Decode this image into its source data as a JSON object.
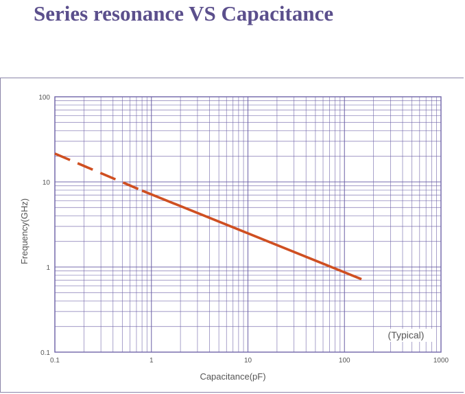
{
  "page": {
    "title": "Series resonance VS Capacitance"
  },
  "colors": {
    "title": "#5b4f8c",
    "grid": "#6f64a8",
    "curve": "#cf4f21",
    "axis_text": "#555555"
  },
  "chart_data": {
    "type": "line",
    "title": "",
    "xlabel": "Capacitance(pF)",
    "ylabel": "Frequency(GHz)",
    "xscale": "log",
    "yscale": "log",
    "xlim": [
      0.1,
      1000
    ],
    "ylim": [
      0.1,
      100
    ],
    "x_ticks": [
      {
        "value": 0.1,
        "label": "0.1"
      },
      {
        "value": 1,
        "label": "1"
      },
      {
        "value": 10,
        "label": "10"
      },
      {
        "value": 100,
        "label": "100"
      },
      {
        "value": 1000,
        "label": "1000"
      }
    ],
    "y_ticks": [
      {
        "value": 0.1,
        "label": "0.1"
      },
      {
        "value": 1,
        "label": "1"
      },
      {
        "value": 10,
        "label": "10"
      },
      {
        "value": 100,
        "label": "100"
      }
    ],
    "grid": true,
    "annotation": "(Typical)",
    "series": [
      {
        "style": "dashed",
        "x": [
          0.1,
          0.8
        ],
        "y": [
          21.5,
          7.9
        ]
      },
      {
        "style": "solid",
        "x": [
          0.8,
          150
        ],
        "y": [
          7.9,
          0.72
        ]
      }
    ]
  }
}
